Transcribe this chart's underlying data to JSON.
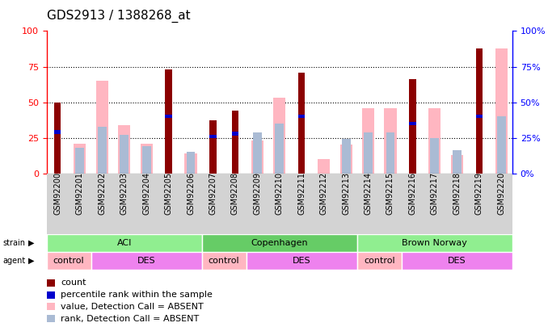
{
  "title": "GDS2913 / 1388268_at",
  "samples": [
    "GSM92200",
    "GSM92201",
    "GSM92202",
    "GSM92203",
    "GSM92204",
    "GSM92205",
    "GSM92206",
    "GSM92207",
    "GSM92208",
    "GSM92209",
    "GSM92210",
    "GSM92211",
    "GSM92212",
    "GSM92213",
    "GSM92214",
    "GSM92215",
    "GSM92216",
    "GSM92217",
    "GSM92218",
    "GSM92219",
    "GSM92220"
  ],
  "count": [
    50,
    0,
    0,
    0,
    0,
    73,
    0,
    37,
    44,
    0,
    0,
    71,
    0,
    0,
    0,
    0,
    66,
    0,
    0,
    88,
    0
  ],
  "percentile_rank": [
    29,
    0,
    0,
    0,
    0,
    40,
    0,
    26,
    28,
    0,
    0,
    40,
    0,
    0,
    0,
    0,
    35,
    0,
    0,
    40,
    0
  ],
  "value_absent": [
    0,
    21,
    65,
    34,
    21,
    0,
    14,
    0,
    0,
    23,
    53,
    0,
    10,
    20,
    46,
    46,
    0,
    46,
    13,
    0,
    88
  ],
  "rank_absent": [
    0,
    18,
    33,
    27,
    19,
    0,
    15,
    0,
    0,
    29,
    35,
    0,
    0,
    24,
    29,
    29,
    0,
    25,
    16,
    0,
    40
  ],
  "strain_groups": [
    {
      "label": "ACI",
      "start": 0,
      "end": 7,
      "color": "#90EE90"
    },
    {
      "label": "Copenhagen",
      "start": 7,
      "end": 14,
      "color": "#66CC66"
    },
    {
      "label": "Brown Norway",
      "start": 14,
      "end": 21,
      "color": "#90EE90"
    }
  ],
  "agent_groups": [
    {
      "label": "control",
      "start": 0,
      "end": 2,
      "color": "#FFB6C1"
    },
    {
      "label": "DES",
      "start": 2,
      "end": 7,
      "color": "#EE82EE"
    },
    {
      "label": "control",
      "start": 7,
      "end": 9,
      "color": "#FFB6C1"
    },
    {
      "label": "DES",
      "start": 9,
      "end": 14,
      "color": "#EE82EE"
    },
    {
      "label": "control",
      "start": 14,
      "end": 16,
      "color": "#FFB6C1"
    },
    {
      "label": "DES",
      "start": 16,
      "end": 21,
      "color": "#EE82EE"
    }
  ],
  "ylim": [
    0,
    100
  ],
  "yticks": [
    0,
    25,
    50,
    75,
    100
  ],
  "count_color": "#8B0000",
  "rank_color": "#0000CD",
  "value_absent_color": "#FFB6C1",
  "rank_absent_color": "#AABBD4",
  "bg_color": "#FFFFFF",
  "title_fontsize": 11,
  "tick_fontsize": 7,
  "legend_fontsize": 8,
  "xtick_bg": "#D3D3D3"
}
